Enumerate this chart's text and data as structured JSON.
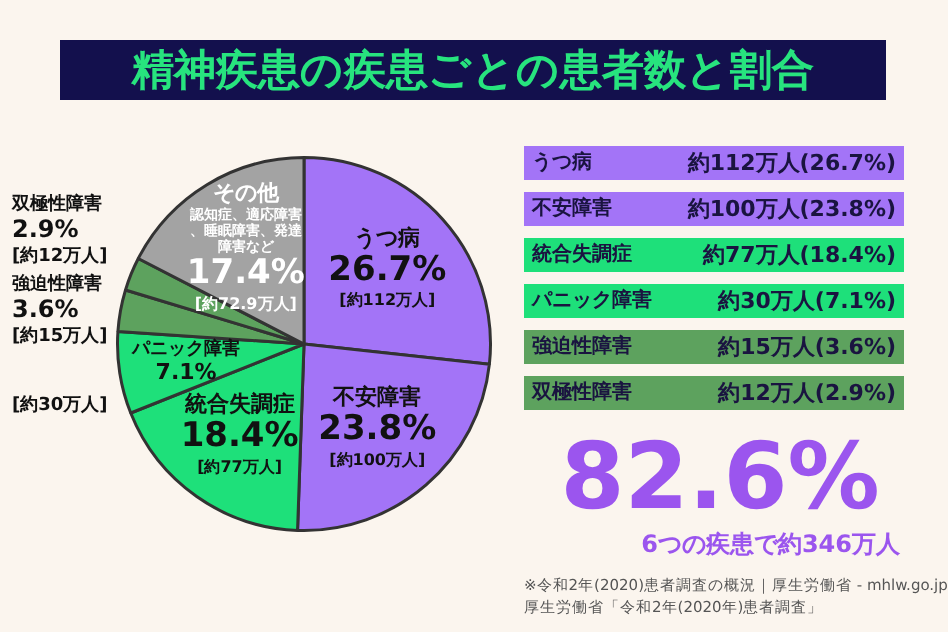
{
  "chart_data": {
    "type": "pie",
    "title": "精神疾患の疾患ごとの患者数と割合",
    "categories": [
      "うつ病",
      "不安障害",
      "統合失調症",
      "パニック障害",
      "強迫性障害",
      "双極性障害",
      "その他"
    ],
    "values": [
      26.7,
      23.8,
      18.4,
      7.1,
      3.6,
      2.9,
      17.4
    ],
    "colors": [
      "#a374f7",
      "#a374f7",
      "#1ee07a",
      "#1ee07a",
      "#5da25e",
      "#5da25e",
      "#a3a3a3"
    ],
    "value_labels": [
      "26.7%",
      "23.8%",
      "18.4%",
      "7.1%",
      "3.6%",
      "2.9%",
      "17.4%"
    ],
    "annotations": [
      {
        "text": "[約112万人]",
        "x": "うつ病"
      },
      {
        "text": "[約100万人]",
        "x": "不安障害"
      },
      {
        "text": "[約77万人]",
        "x": "統合失調症"
      },
      {
        "text": "[約30万人]",
        "x": "パニック障害"
      },
      {
        "text": "[約15万人]",
        "x": "強迫性障害"
      },
      {
        "text": "[約12万人]",
        "x": "双極性障害"
      },
      {
        "text": "認知症、適応障害、睡眠障害、発達障害など",
        "x": "その他"
      },
      {
        "text": "[約72.9万人]",
        "x": "その他"
      },
      "約112万人(26.7%)",
      "約100万人(23.8%)",
      "約77万人(18.4%)",
      "約30万人(7.1%)",
      "約15万人(3.6%)",
      "約12万人(2.9%)",
      "82.6%",
      "6つの疾患で約346万人",
      "※令和2年(2020)患者調査の概況｜厚生労働省 - mhlw.go.jp",
      "厚生労働省「令和2年(2020年)患者調査」"
    ]
  }
}
